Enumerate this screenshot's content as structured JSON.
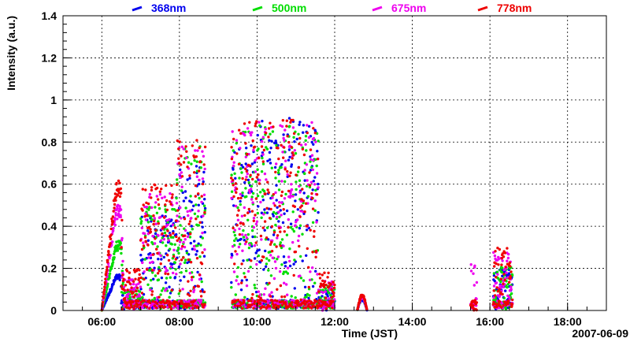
{
  "chart_data": {
    "type": "scatter",
    "title": "",
    "xlabel": "Time (JST)",
    "ylabel": "Intensity (a.u.)",
    "date_label": "2007-06-09",
    "xlim": [
      "05:00",
      "19:00"
    ],
    "ylim": [
      0,
      1.4
    ],
    "grid": true,
    "legend_position": "top",
    "x_ticks": [
      "06:00",
      "08:00",
      "10:00",
      "12:00",
      "14:00",
      "16:00",
      "18:00"
    ],
    "y_ticks": [
      "0",
      "0.2",
      "0.4",
      "0.6",
      "0.8",
      "1",
      "1.2",
      "1.4"
    ],
    "series": [
      {
        "name": "368nm",
        "color": "#0000ee",
        "segments": [
          {
            "t0": "06:00",
            "t1": "06:35",
            "peak": 0.17,
            "shape": "ramp"
          },
          {
            "t0": "06:35",
            "t1": "07:00",
            "peak": 0.05,
            "shape": "burst"
          },
          {
            "t0": "07:00",
            "t1": "07:55",
            "peak": 0.45,
            "shape": "burst"
          },
          {
            "t0": "07:55",
            "t1": "08:40",
            "peak": 0.7,
            "shape": "burst"
          },
          {
            "t0": "09:20",
            "t1": "10:00",
            "peak": 0.8,
            "shape": "burst"
          },
          {
            "t0": "10:00",
            "t1": "11:35",
            "peak": 0.92,
            "shape": "burst"
          },
          {
            "t0": "11:35",
            "t1": "12:00",
            "peak": 0.1,
            "shape": "burst"
          },
          {
            "t0": "12:35",
            "t1": "12:50",
            "peak": 0.06,
            "shape": "bump"
          },
          {
            "t0": "16:05",
            "t1": "16:35",
            "peak": 0.2,
            "shape": "burst"
          }
        ]
      },
      {
        "name": "500nm",
        "color": "#00dd00",
        "segments": [
          {
            "t0": "06:00",
            "t1": "06:35",
            "peak": 0.33,
            "shape": "ramp"
          },
          {
            "t0": "06:35",
            "t1": "07:00",
            "peak": 0.1,
            "shape": "burst"
          },
          {
            "t0": "07:00",
            "t1": "07:55",
            "peak": 0.5,
            "shape": "burst"
          },
          {
            "t0": "07:55",
            "t1": "08:40",
            "peak": 0.78,
            "shape": "burst"
          },
          {
            "t0": "09:20",
            "t1": "10:00",
            "peak": 0.85,
            "shape": "burst"
          },
          {
            "t0": "10:00",
            "t1": "11:35",
            "peak": 0.88,
            "shape": "burst"
          },
          {
            "t0": "11:35",
            "t1": "12:00",
            "peak": 0.12,
            "shape": "burst"
          },
          {
            "t0": "12:35",
            "t1": "12:50",
            "peak": 0.07,
            "shape": "bump"
          },
          {
            "t0": "16:05",
            "t1": "16:35",
            "peak": 0.22,
            "shape": "burst"
          }
        ]
      },
      {
        "name": "675nm",
        "color": "#ee00ee",
        "segments": [
          {
            "t0": "06:00",
            "t1": "06:35",
            "peak": 0.5,
            "shape": "ramp"
          },
          {
            "t0": "06:35",
            "t1": "07:00",
            "peak": 0.15,
            "shape": "burst"
          },
          {
            "t0": "07:00",
            "t1": "07:55",
            "peak": 0.58,
            "shape": "burst"
          },
          {
            "t0": "07:55",
            "t1": "08:40",
            "peak": 0.78,
            "shape": "burst"
          },
          {
            "t0": "09:20",
            "t1": "10:00",
            "peak": 0.88,
            "shape": "burst"
          },
          {
            "t0": "10:00",
            "t1": "11:35",
            "peak": 0.9,
            "shape": "burst"
          },
          {
            "t0": "11:35",
            "t1": "12:00",
            "peak": 0.15,
            "shape": "burst"
          },
          {
            "t0": "12:35",
            "t1": "12:50",
            "peak": 0.07,
            "shape": "bump"
          },
          {
            "t0": "15:30",
            "t1": "15:40",
            "peak": 0.22,
            "shape": "burst"
          },
          {
            "t0": "16:05",
            "t1": "16:35",
            "peak": 0.28,
            "shape": "burst"
          }
        ]
      },
      {
        "name": "778nm",
        "color": "#ee0000",
        "segments": [
          {
            "t0": "06:00",
            "t1": "06:35",
            "peak": 0.62,
            "shape": "ramp"
          },
          {
            "t0": "06:35",
            "t1": "07:00",
            "peak": 0.2,
            "shape": "burst"
          },
          {
            "t0": "07:00",
            "t1": "07:55",
            "peak": 0.6,
            "shape": "burst"
          },
          {
            "t0": "07:55",
            "t1": "08:40",
            "peak": 0.81,
            "shape": "burst"
          },
          {
            "t0": "09:20",
            "t1": "10:00",
            "peak": 0.9,
            "shape": "burst"
          },
          {
            "t0": "10:00",
            "t1": "11:35",
            "peak": 0.91,
            "shape": "burst"
          },
          {
            "t0": "11:35",
            "t1": "12:00",
            "peak": 0.18,
            "shape": "burst"
          },
          {
            "t0": "12:35",
            "t1": "12:50",
            "peak": 0.08,
            "shape": "bump"
          },
          {
            "t0": "15:30",
            "t1": "15:40",
            "peak": 0.05,
            "shape": "burst"
          },
          {
            "t0": "16:05",
            "t1": "16:35",
            "peak": 0.3,
            "shape": "burst"
          }
        ]
      }
    ]
  }
}
